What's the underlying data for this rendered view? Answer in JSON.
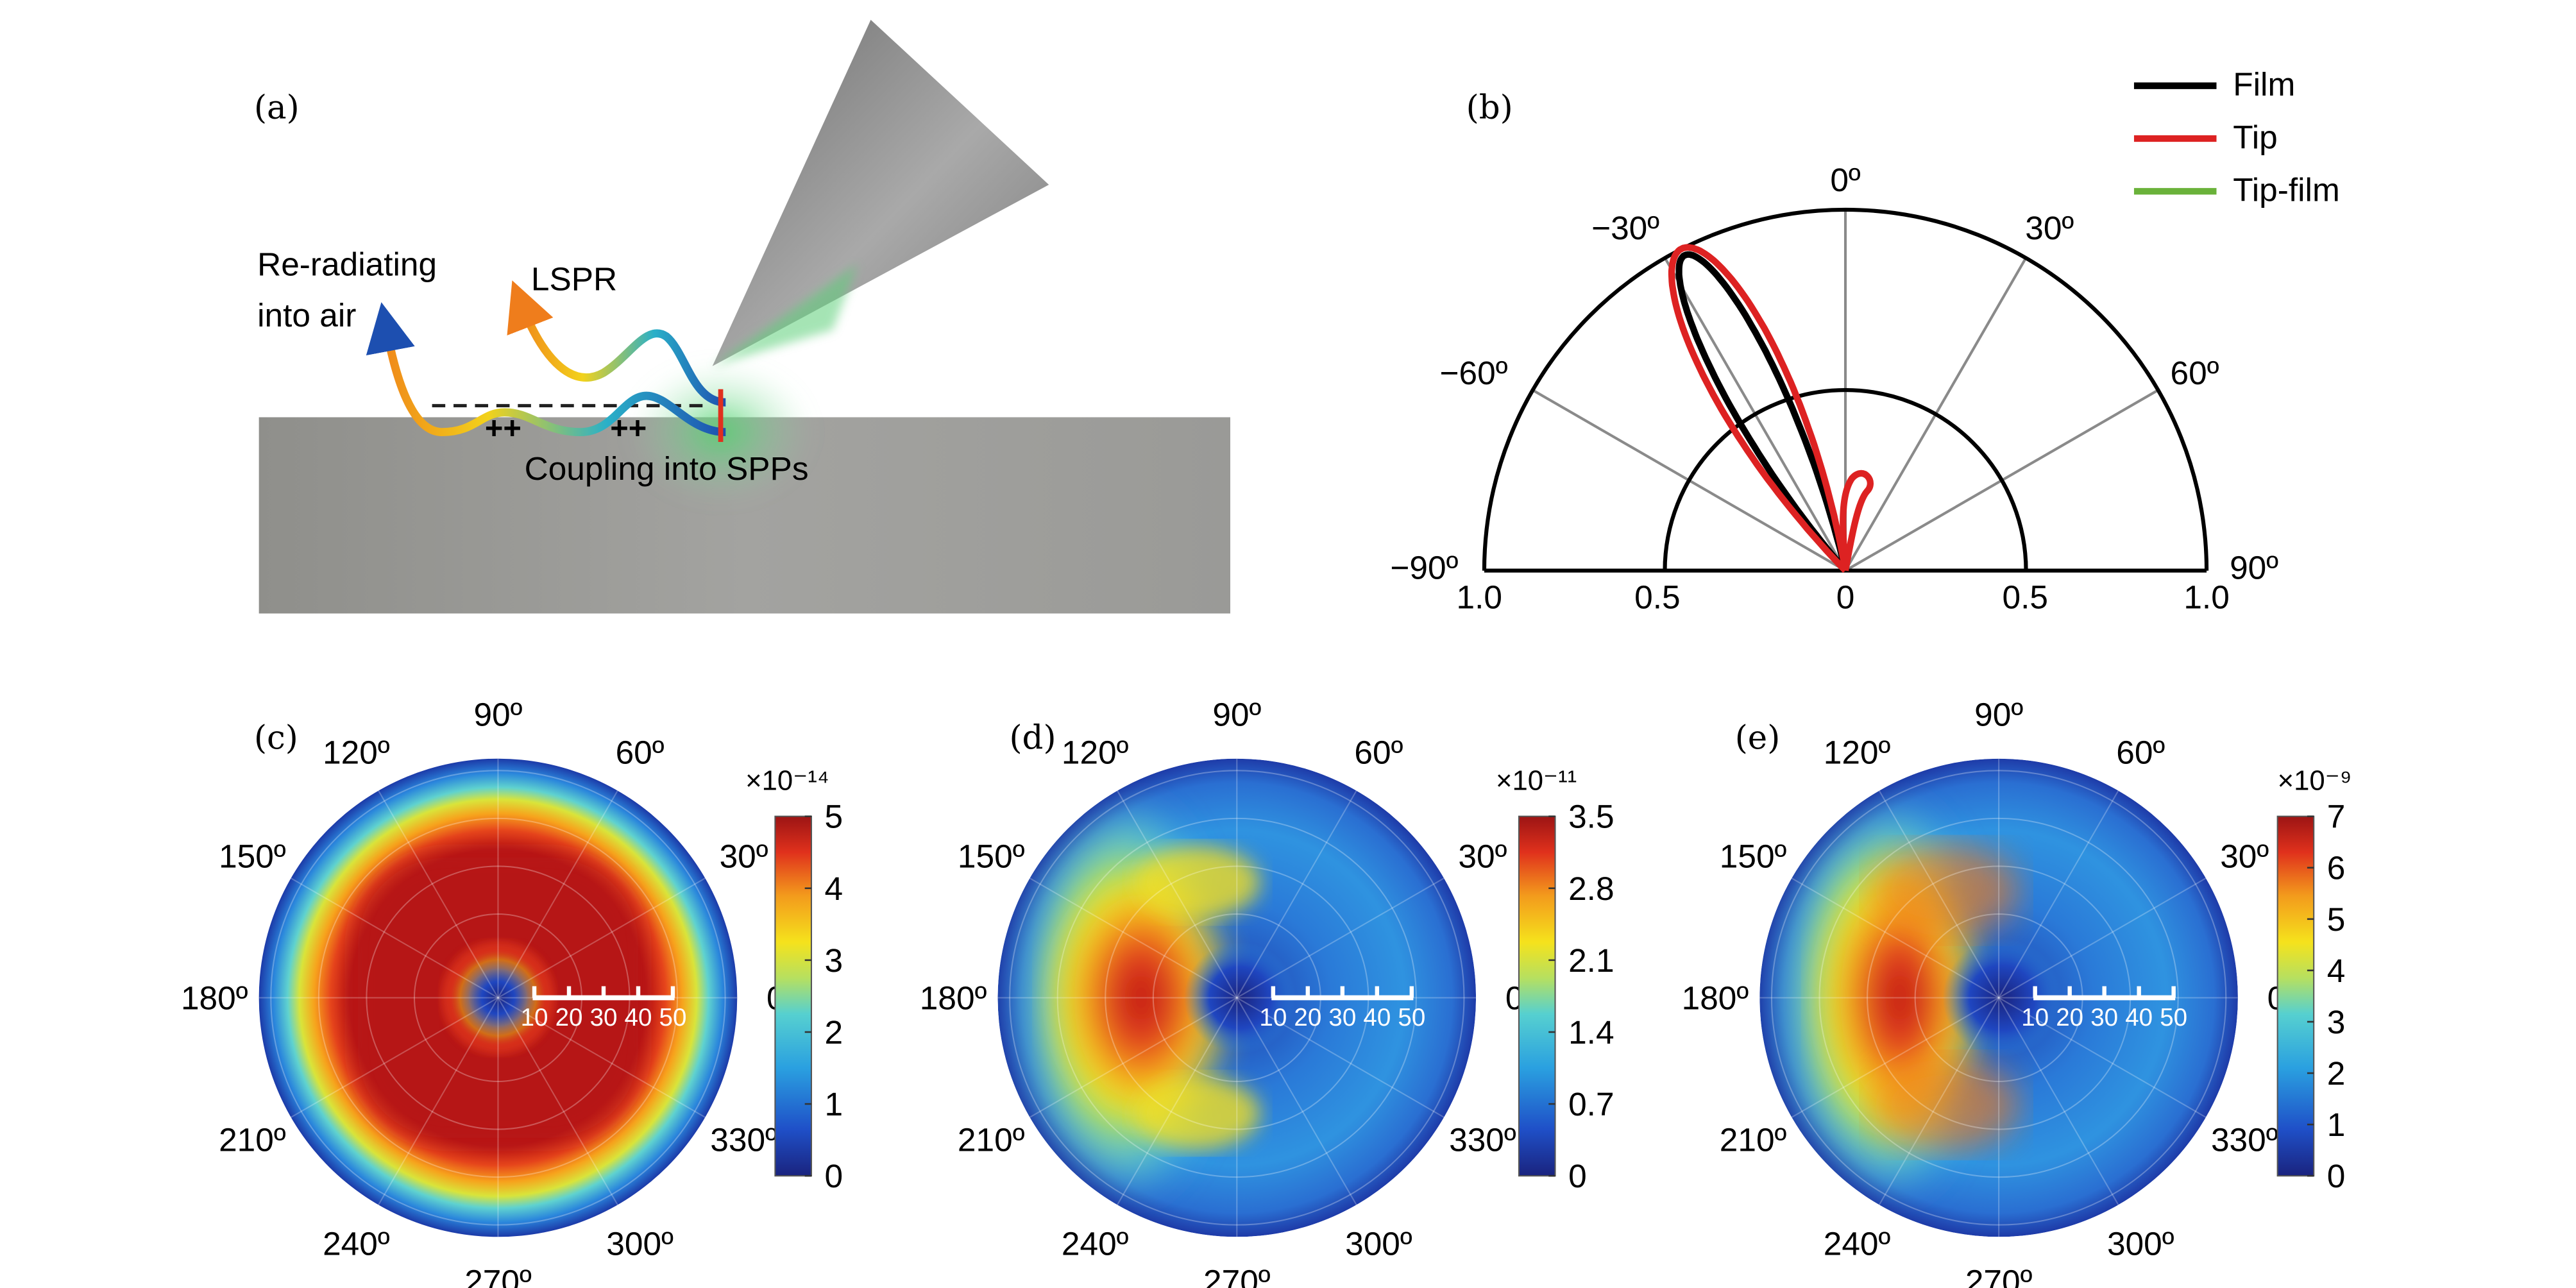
{
  "panels": {
    "a": {
      "label": "(a)",
      "reradiating_line1": "Re-radiating",
      "reradiating_line2": "into air",
      "lspr": "LSPR",
      "coupling": "Coupling into SPPs",
      "charge_left": "++",
      "charge_right": "++"
    },
    "b": {
      "label": "(b)",
      "angle_labels": [
        "0º",
        "30º",
        "60º",
        "90º",
        "−30º",
        "−60º",
        "−90º"
      ],
      "radial_labels": [
        "1.0",
        "0.5",
        "0",
        "0.5",
        "1.0"
      ],
      "legend": [
        {
          "name": "Film",
          "color": "#000000"
        },
        {
          "name": "Tip",
          "color": "#dd2222"
        },
        {
          "name": "Tip-film",
          "color": "#6ab23a"
        }
      ]
    },
    "c": {
      "label": "(c)",
      "colorbar_exponent": "×10⁻¹⁴",
      "colorbar_ticks": [
        "5",
        "4",
        "3",
        "2",
        "1",
        "0"
      ],
      "max_value": 5
    },
    "d": {
      "label": "(d)",
      "colorbar_exponent": "×10⁻¹¹",
      "colorbar_ticks": [
        "3.5",
        "2.8",
        "2.1",
        "1.4",
        "0.7",
        "0"
      ],
      "max_value": 3.5
    },
    "e": {
      "label": "(e)",
      "colorbar_exponent": "×10⁻⁹",
      "colorbar_ticks": [
        "7",
        "6",
        "5",
        "4",
        "3",
        "2",
        "1",
        "0"
      ],
      "max_value": 7
    },
    "polar_common": {
      "angle_labels": [
        "90º",
        "60º",
        "30º",
        "0º",
        "330º",
        "300º",
        "270º",
        "240º",
        "210º",
        "180º",
        "150º",
        "120º"
      ],
      "radial_scale_labels": [
        "10",
        "20",
        "30",
        "40",
        "50"
      ]
    }
  },
  "colors": {
    "jet_dark_blue": "#1a237e",
    "jet_red": "#b71c1c",
    "film_gray": "#9a9a96",
    "tip_gray": "#808080",
    "green_glow": "#4cd36a"
  }
}
